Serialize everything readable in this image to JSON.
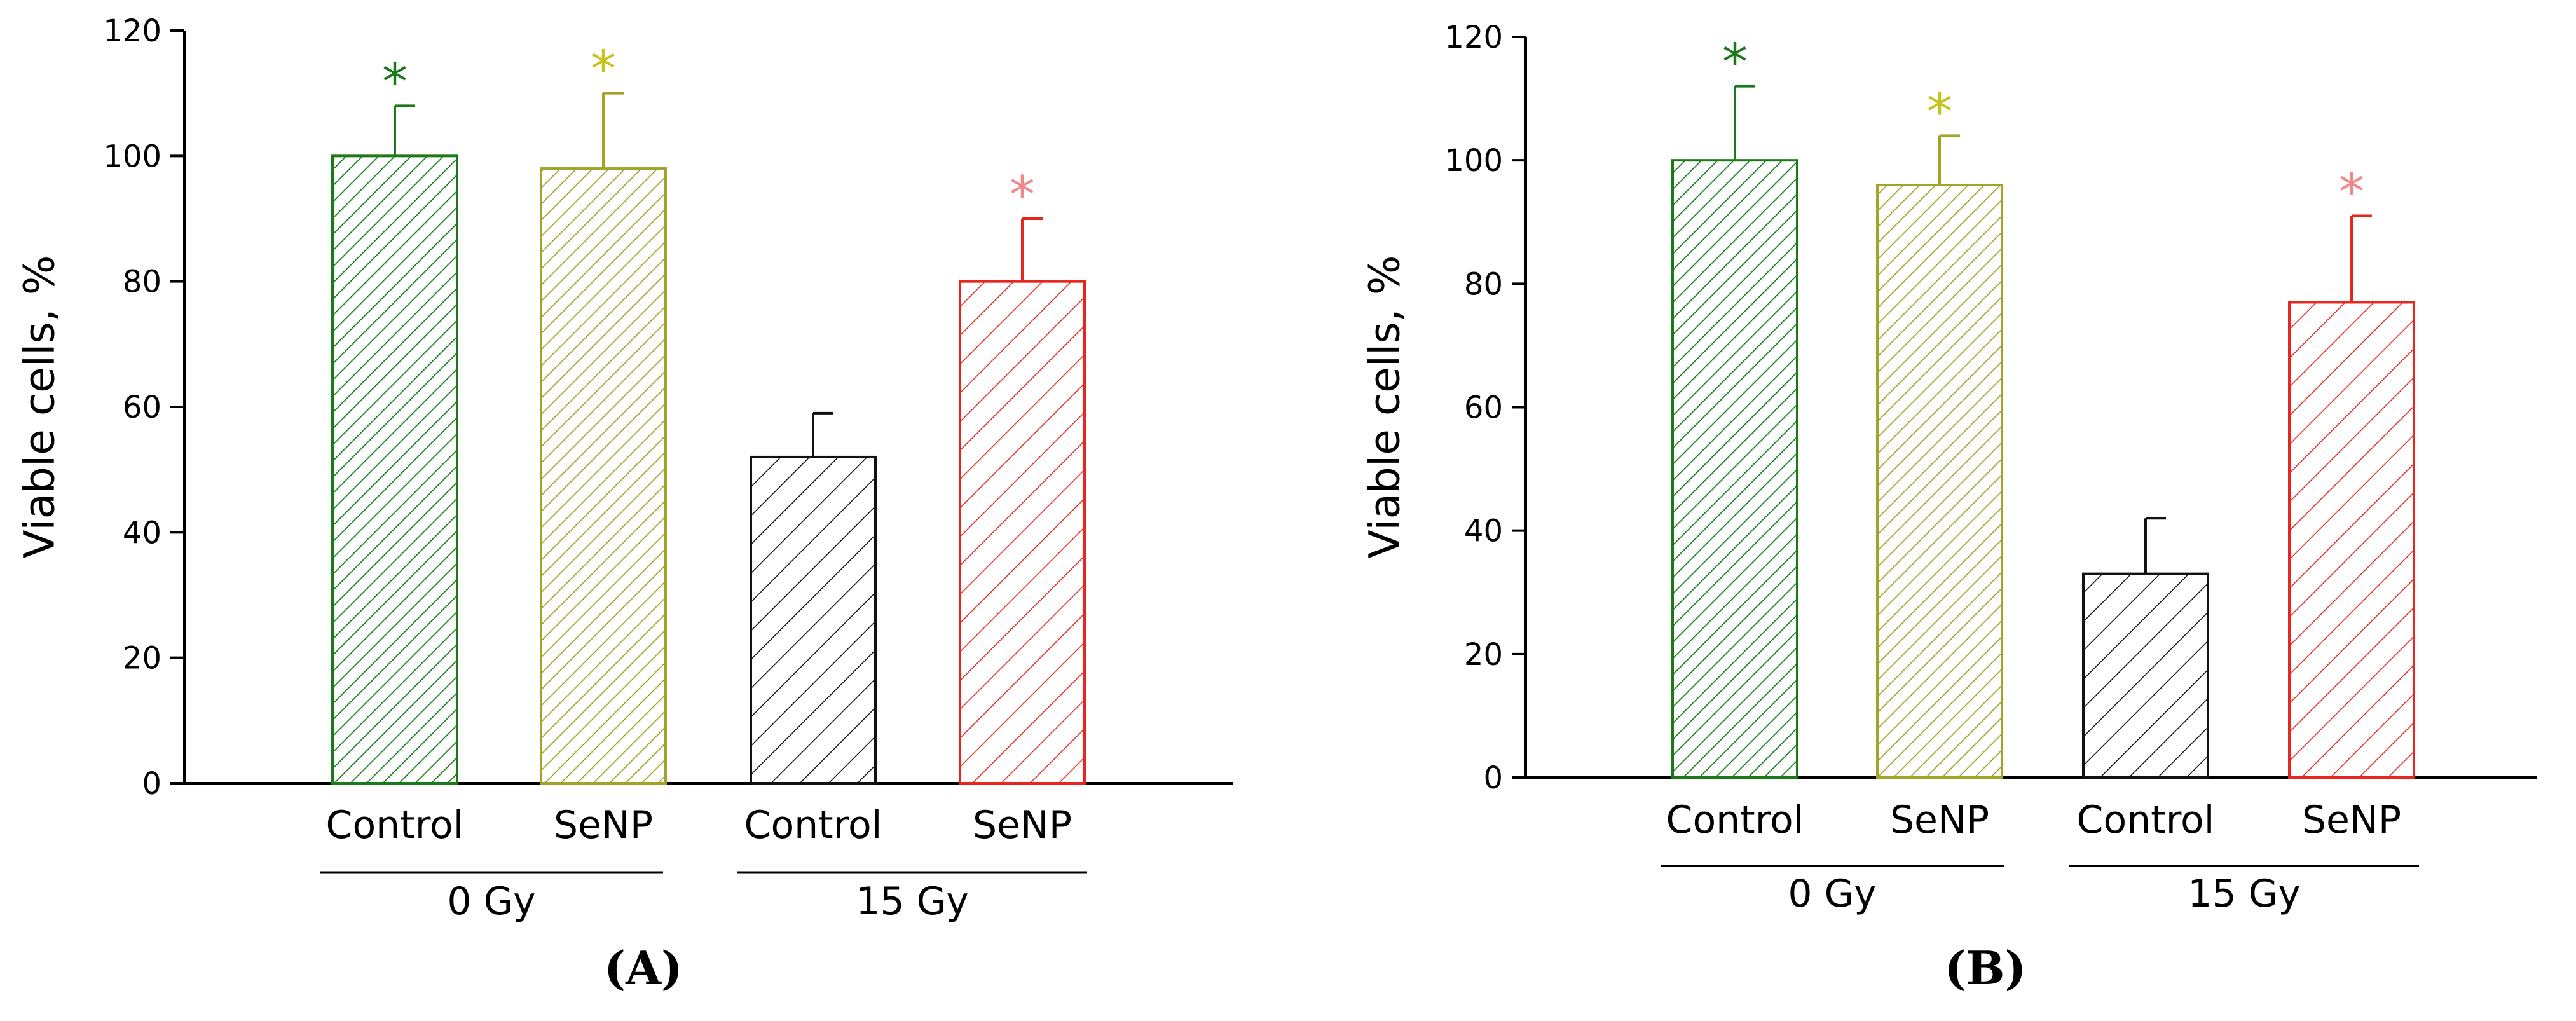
{
  "chart_data": [
    {
      "type": "bar",
      "panel_label": "(A)",
      "ylabel": "Viable cells, %",
      "ylim": [
        0,
        120
      ],
      "yticks": [
        0,
        20,
        40,
        60,
        80,
        100,
        120
      ],
      "groups": [
        {
          "label": "0 Gy",
          "categories": [
            "Control",
            "SeNP"
          ]
        },
        {
          "label": "15 Gy",
          "categories": [
            "Control",
            "SeNP"
          ]
        }
      ],
      "bars": [
        {
          "group": "0 Gy",
          "category": "Control",
          "value": 100,
          "error": 8,
          "significant": true,
          "marker": "*",
          "color": "#1a7a1a"
        },
        {
          "group": "0 Gy",
          "category": "SeNP",
          "value": 98,
          "error": 12,
          "significant": true,
          "marker": "*",
          "color": "#a3a32a"
        },
        {
          "group": "15 Gy",
          "category": "Control",
          "value": 52,
          "error": 7,
          "significant": false,
          "marker": "",
          "color": "#111111"
        },
        {
          "group": "15 Gy",
          "category": "SeNP",
          "value": 80,
          "error": 10,
          "significant": true,
          "marker": "*",
          "color": "#e8261f"
        }
      ]
    },
    {
      "type": "bar",
      "panel_label": "(B)",
      "ylabel": "Viable cells, %",
      "ylim": [
        0,
        120
      ],
      "yticks": [
        0,
        20,
        40,
        60,
        80,
        100,
        120
      ],
      "groups": [
        {
          "label": "0 Gy",
          "categories": [
            "Control",
            "SeNP"
          ]
        },
        {
          "label": "15 Gy",
          "categories": [
            "Control",
            "SeNP"
          ]
        }
      ],
      "bars": [
        {
          "group": "0 Gy",
          "category": "Control",
          "value": 100,
          "error": 12,
          "significant": true,
          "marker": "*",
          "color": "#1a7a1a"
        },
        {
          "group": "0 Gy",
          "category": "SeNP",
          "value": 96,
          "error": 8,
          "significant": true,
          "marker": "*",
          "color": "#a3a32a"
        },
        {
          "group": "15 Gy",
          "category": "Control",
          "value": 33,
          "error": 9,
          "significant": false,
          "marker": "",
          "color": "#111111"
        },
        {
          "group": "15 Gy",
          "category": "SeNP",
          "value": 77,
          "error": 14,
          "significant": true,
          "marker": "*",
          "color": "#e8261f"
        }
      ]
    }
  ],
  "marker_colors": {
    "0 Gy Control": "#1a7a1a",
    "0 Gy SeNP": "#c4c41c",
    "15 Gy SeNP": "#f08a8a"
  }
}
